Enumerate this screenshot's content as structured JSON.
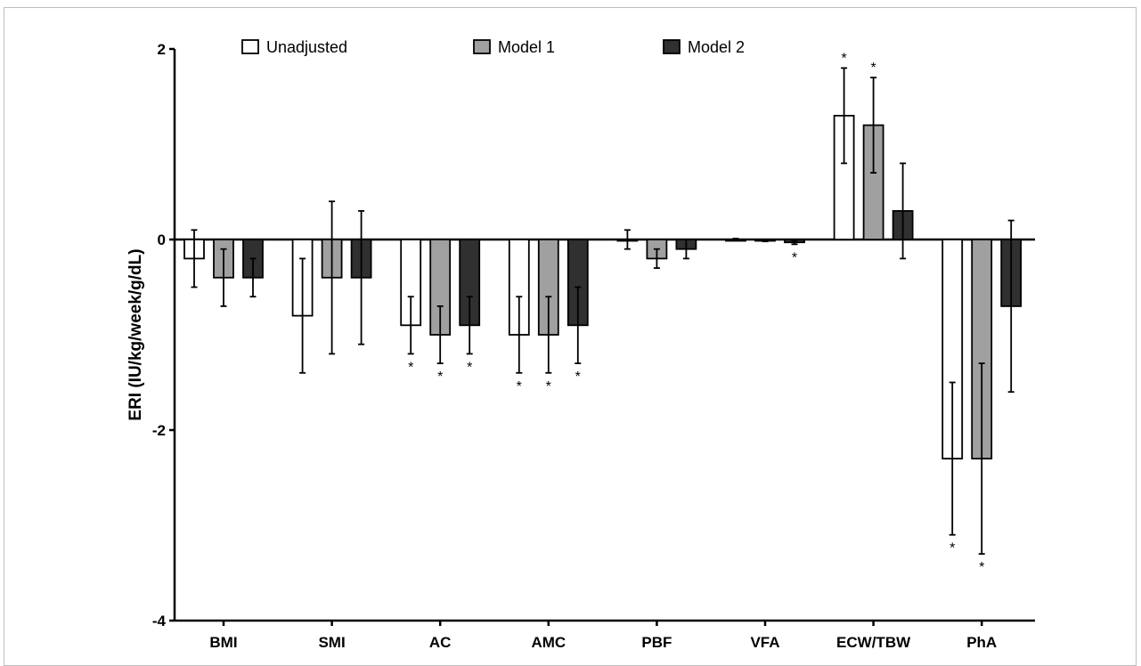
{
  "chart_data": {
    "type": "bar",
    "ylabel": "ERI (IU/kg/week/g/dL)",
    "xlabel": "",
    "ylim": [
      -4,
      2
    ],
    "yticks": [
      "2",
      "0",
      "-2",
      "-4"
    ],
    "categories": [
      "BMI",
      "SMI",
      "AC",
      "AMC",
      "PBF",
      "VFA",
      "ECW/TBW",
      "PhA"
    ],
    "legend_position": "top",
    "series": [
      {
        "name": "Unadjusted",
        "color": "#ffffff",
        "values": [
          -0.2,
          -0.8,
          -0.9,
          -1.0,
          0.0,
          0.0,
          1.3,
          -2.3
        ],
        "err_low": [
          -0.5,
          -1.4,
          -1.2,
          -1.4,
          -0.1,
          -0.01,
          0.8,
          -3.1
        ],
        "err_high": [
          0.1,
          -0.2,
          -0.6,
          -0.6,
          0.1,
          0.01,
          1.8,
          -1.5
        ],
        "significant": [
          false,
          false,
          true,
          true,
          false,
          false,
          true,
          true
        ]
      },
      {
        "name": "Model 1",
        "color": "#a0a0a0",
        "values": [
          -0.4,
          -0.4,
          -1.0,
          -1.0,
          -0.2,
          -0.01,
          1.2,
          -2.3
        ],
        "err_low": [
          -0.7,
          -1.2,
          -1.3,
          -1.4,
          -0.3,
          -0.02,
          0.7,
          -3.3
        ],
        "err_high": [
          -0.1,
          0.4,
          -0.7,
          -0.6,
          -0.1,
          0.0,
          1.7,
          -1.3
        ],
        "significant": [
          false,
          false,
          true,
          true,
          false,
          false,
          true,
          true
        ]
      },
      {
        "name": "Model 2",
        "color": "#303030",
        "values": [
          -0.4,
          -0.4,
          -0.9,
          -0.9,
          -0.1,
          -0.03,
          0.3,
          -0.7
        ],
        "err_low": [
          -0.6,
          -1.1,
          -1.2,
          -1.3,
          -0.2,
          -0.05,
          -0.2,
          -1.6
        ],
        "err_high": [
          -0.2,
          0.3,
          -0.6,
          -0.5,
          0.0,
          -0.01,
          0.8,
          0.2
        ],
        "significant": [
          false,
          false,
          true,
          true,
          false,
          true,
          false,
          false
        ]
      }
    ],
    "significance_marker": "*"
  }
}
